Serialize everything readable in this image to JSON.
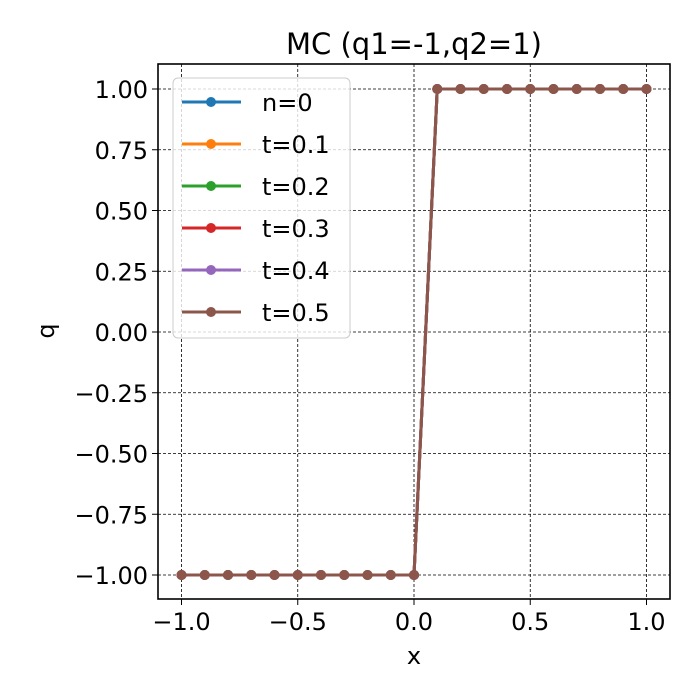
{
  "chart_data": {
    "type": "line",
    "title": "MC (q1=-1,q2=1)",
    "xlabel": "x",
    "ylabel": "q",
    "xlim": [
      -1.1,
      1.1
    ],
    "ylim": [
      -1.1,
      1.1
    ],
    "grid": true,
    "legend_position": "upper left",
    "x_ticks": [
      -1.0,
      -0.5,
      0.0,
      0.5,
      1.0
    ],
    "x_tick_labels": [
      "−1.0",
      "−0.5",
      "0.0",
      "0.5",
      "1.0"
    ],
    "y_ticks": [
      1.0,
      0.75,
      0.5,
      0.25,
      0.0,
      -0.25,
      -0.5,
      -0.75,
      -1.0
    ],
    "y_tick_labels": [
      "1.00",
      "0.75",
      "0.50",
      "0.25",
      "0.00",
      "−0.25",
      "−0.50",
      "−0.75",
      "−1.00"
    ],
    "x": [
      -1.0,
      -0.9,
      -0.8,
      -0.7,
      -0.6,
      -0.5,
      -0.4,
      -0.3,
      -0.2,
      -0.1,
      0.0,
      0.1,
      0.2,
      0.3,
      0.4,
      0.5,
      0.6,
      0.7,
      0.8,
      0.9,
      1.0
    ],
    "series": [
      {
        "name": "n=0",
        "color": "#1f77b4",
        "values": [
          -1,
          -1,
          -1,
          -1,
          -1,
          -1,
          -1,
          -1,
          -1,
          -1,
          -1,
          1,
          1,
          1,
          1,
          1,
          1,
          1,
          1,
          1,
          1
        ]
      },
      {
        "name": "t=0.1",
        "color": "#ff7f0e",
        "values": [
          -1,
          -1,
          -1,
          -1,
          -1,
          -1,
          -1,
          -1,
          -1,
          -1,
          -1,
          1,
          1,
          1,
          1,
          1,
          1,
          1,
          1,
          1,
          1
        ]
      },
      {
        "name": "t=0.2",
        "color": "#2ca02c",
        "values": [
          -1,
          -1,
          -1,
          -1,
          -1,
          -1,
          -1,
          -1,
          -1,
          -1,
          -1,
          1,
          1,
          1,
          1,
          1,
          1,
          1,
          1,
          1,
          1
        ]
      },
      {
        "name": "t=0.3",
        "color": "#d62728",
        "values": [
          -1,
          -1,
          -1,
          -1,
          -1,
          -1,
          -1,
          -1,
          -1,
          -1,
          -1,
          1,
          1,
          1,
          1,
          1,
          1,
          1,
          1,
          1,
          1
        ]
      },
      {
        "name": "t=0.4",
        "color": "#9467bd",
        "values": [
          -1,
          -1,
          -1,
          -1,
          -1,
          -1,
          -1,
          -1,
          -1,
          -1,
          -1,
          1,
          1,
          1,
          1,
          1,
          1,
          1,
          1,
          1,
          1
        ]
      },
      {
        "name": "t=0.5",
        "color": "#8c564b",
        "values": [
          -1,
          -1,
          -1,
          -1,
          -1,
          -1,
          -1,
          -1,
          -1,
          -1,
          -1,
          1,
          1,
          1,
          1,
          1,
          1,
          1,
          1,
          1,
          1
        ]
      }
    ]
  }
}
